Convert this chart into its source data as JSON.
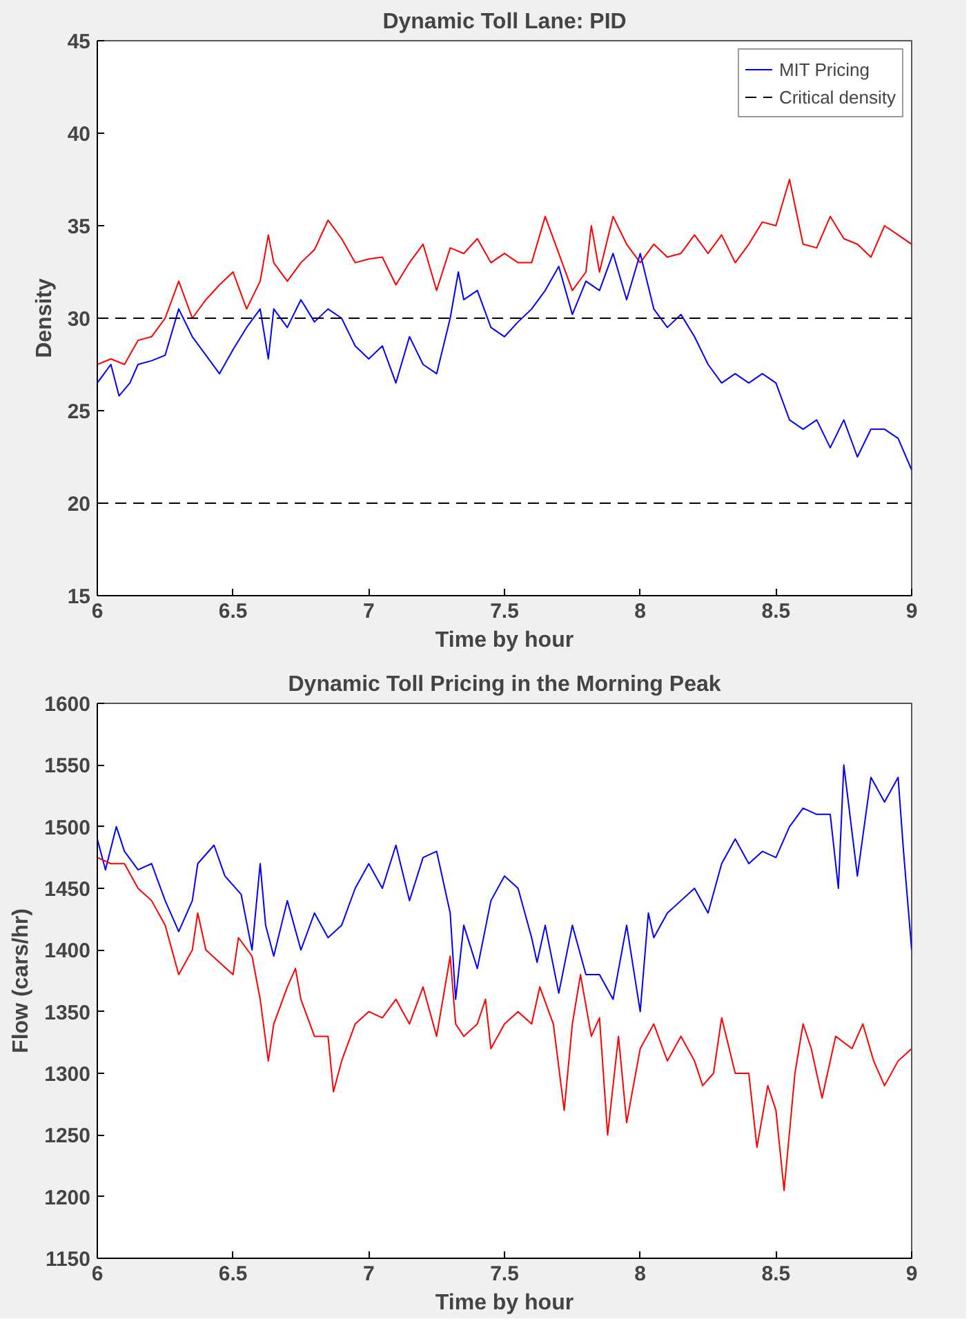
{
  "chart_data": [
    {
      "type": "line",
      "title": "Dynamic Toll Lane: PID",
      "xlabel": "Time by hour",
      "ylabel": "Density",
      "xlim": [
        6,
        9
      ],
      "xticks": [
        6,
        6.5,
        7,
        7.5,
        8,
        8.5,
        9
      ],
      "ylim": [
        15,
        45
      ],
      "yticks": [
        15,
        20,
        25,
        30,
        35,
        40,
        45
      ],
      "grid": false,
      "legend": "top right",
      "line_style": "solid",
      "series": [
        {
          "color": "#ff0000",
          "x": [
            6.0,
            6.05,
            6.1,
            6.15,
            6.2,
            6.25,
            6.3,
            6.35,
            6.4,
            6.45,
            6.5,
            6.55,
            6.6,
            6.63,
            6.65,
            6.7,
            6.75,
            6.8,
            6.85,
            6.9,
            6.95,
            7.0,
            7.05,
            7.1,
            7.15,
            7.2,
            7.25,
            7.3,
            7.35,
            7.4,
            7.45,
            7.5,
            7.55,
            7.6,
            7.65,
            7.7,
            7.75,
            7.8,
            7.82,
            7.85,
            7.9,
            7.95,
            8.0,
            8.05,
            8.1,
            8.15,
            8.2,
            8.25,
            8.3,
            8.35,
            8.4,
            8.45,
            8.5,
            8.55,
            8.6,
            8.65,
            8.7,
            8.75,
            8.8,
            8.85,
            8.9,
            8.95,
            9.0
          ],
          "values": [
            27.5,
            27.8,
            27.5,
            28.8,
            29.0,
            30.0,
            32.0,
            30.0,
            31.0,
            31.8,
            32.5,
            30.5,
            32.0,
            34.5,
            33.0,
            32.0,
            33.0,
            33.7,
            35.3,
            34.3,
            33.0,
            33.2,
            33.3,
            31.8,
            33.0,
            34.0,
            31.5,
            33.8,
            33.5,
            34.3,
            33.0,
            33.5,
            33.0,
            33.0,
            35.5,
            33.5,
            31.5,
            32.5,
            35.0,
            32.5,
            35.5,
            34.0,
            33.0,
            34.0,
            33.3,
            33.5,
            34.5,
            33.5,
            34.5,
            33.0,
            34.0,
            35.2,
            35.0,
            37.5,
            34.0,
            33.8,
            35.5,
            34.3,
            34.0,
            33.3,
            35.0,
            34.5,
            34.0
          ]
        },
        {
          "name": "MIT Pricing",
          "color": "#0000ff",
          "x": [
            6.0,
            6.05,
            6.08,
            6.12,
            6.15,
            6.2,
            6.25,
            6.3,
            6.35,
            6.4,
            6.45,
            6.5,
            6.55,
            6.6,
            6.63,
            6.65,
            6.7,
            6.75,
            6.8,
            6.85,
            6.9,
            6.95,
            7.0,
            7.05,
            7.1,
            7.15,
            7.2,
            7.25,
            7.3,
            7.33,
            7.35,
            7.4,
            7.45,
            7.5,
            7.55,
            7.6,
            7.65,
            7.7,
            7.75,
            7.8,
            7.85,
            7.9,
            7.95,
            8.0,
            8.05,
            8.1,
            8.15,
            8.2,
            8.25,
            8.3,
            8.35,
            8.4,
            8.45,
            8.5,
            8.55,
            8.6,
            8.65,
            8.7,
            8.75,
            8.8,
            8.85,
            8.9,
            8.95,
            9.0
          ],
          "values": [
            26.5,
            27.5,
            25.8,
            26.5,
            27.5,
            27.7,
            28.0,
            30.5,
            29.0,
            28.0,
            27.0,
            28.3,
            29.5,
            30.5,
            27.8,
            30.5,
            29.5,
            31.0,
            29.8,
            30.5,
            30.0,
            28.5,
            27.8,
            28.5,
            26.5,
            29.0,
            27.5,
            27.0,
            30.0,
            32.5,
            31.0,
            31.5,
            29.5,
            29.0,
            29.8,
            30.5,
            31.5,
            32.8,
            30.2,
            32.0,
            31.5,
            33.5,
            31.0,
            33.5,
            30.5,
            29.5,
            30.2,
            29.0,
            27.5,
            26.5,
            27.0,
            26.5,
            27.0,
            26.5,
            24.5,
            24.0,
            24.5,
            23.0,
            24.5,
            22.5,
            24.0,
            24.0,
            23.5,
            21.8
          ]
        }
      ],
      "ref_lines": [
        {
          "axis": "y",
          "value": 30,
          "label": "Critical density",
          "color": "#000000",
          "line_style": "dashed"
        },
        {
          "axis": "y",
          "value": 20,
          "color": "#000000",
          "line_style": "dashed"
        }
      ]
    },
    {
      "type": "line",
      "title": "Dynamic Toll Pricing in the Morning Peak",
      "xlabel": "Time by hour",
      "ylabel": "Flow (cars/hr)",
      "xlim": [
        6,
        9
      ],
      "xticks": [
        6,
        6.5,
        7,
        7.5,
        8,
        8.5,
        9
      ],
      "ylim": [
        1150,
        1600
      ],
      "yticks": [
        1150,
        1200,
        1250,
        1300,
        1350,
        1400,
        1450,
        1500,
        1550,
        1600
      ],
      "grid": false,
      "line_style": "solid",
      "series": [
        {
          "color": "#0000ff",
          "x": [
            6.0,
            6.03,
            6.07,
            6.1,
            6.15,
            6.2,
            6.25,
            6.3,
            6.35,
            6.37,
            6.43,
            6.47,
            6.53,
            6.57,
            6.6,
            6.62,
            6.65,
            6.7,
            6.75,
            6.8,
            6.85,
            6.9,
            6.95,
            7.0,
            7.05,
            7.1,
            7.15,
            7.2,
            7.25,
            7.3,
            7.32,
            7.35,
            7.4,
            7.45,
            7.5,
            7.55,
            7.6,
            7.62,
            7.65,
            7.7,
            7.75,
            7.8,
            7.85,
            7.9,
            7.95,
            8.0,
            8.03,
            8.05,
            8.1,
            8.15,
            8.2,
            8.25,
            8.3,
            8.35,
            8.4,
            8.45,
            8.5,
            8.55,
            8.6,
            8.65,
            8.7,
            8.73,
            8.75,
            8.8,
            8.85,
            8.9,
            8.95,
            8.97,
            9.0
          ],
          "values": [
            1490,
            1465,
            1500,
            1480,
            1465,
            1470,
            1440,
            1415,
            1440,
            1470,
            1485,
            1460,
            1445,
            1400,
            1470,
            1420,
            1395,
            1440,
            1400,
            1430,
            1410,
            1420,
            1450,
            1470,
            1450,
            1485,
            1440,
            1475,
            1480,
            1430,
            1360,
            1420,
            1385,
            1440,
            1460,
            1450,
            1410,
            1390,
            1420,
            1365,
            1420,
            1380,
            1380,
            1360,
            1420,
            1350,
            1430,
            1410,
            1430,
            1440,
            1450,
            1430,
            1470,
            1490,
            1470,
            1480,
            1475,
            1500,
            1515,
            1510,
            1510,
            1450,
            1550,
            1460,
            1540,
            1520,
            1540,
            1480,
            1400
          ]
        },
        {
          "color": "#ff0000",
          "x": [
            6.0,
            6.05,
            6.1,
            6.15,
            6.2,
            6.25,
            6.3,
            6.35,
            6.37,
            6.4,
            6.45,
            6.5,
            6.52,
            6.57,
            6.6,
            6.63,
            6.65,
            6.7,
            6.73,
            6.75,
            6.8,
            6.85,
            6.87,
            6.9,
            6.95,
            7.0,
            7.05,
            7.1,
            7.15,
            7.2,
            7.25,
            7.3,
            7.32,
            7.35,
            7.4,
            7.43,
            7.45,
            7.5,
            7.55,
            7.6,
            7.63,
            7.68,
            7.72,
            7.75,
            7.78,
            7.82,
            7.85,
            7.88,
            7.92,
            7.95,
            8.0,
            8.05,
            8.1,
            8.15,
            8.2,
            8.23,
            8.27,
            8.3,
            8.35,
            8.4,
            8.43,
            8.47,
            8.5,
            8.53,
            8.57,
            8.6,
            8.63,
            8.67,
            8.72,
            8.78,
            8.82,
            8.86,
            8.9,
            8.95,
            9.0
          ],
          "values": [
            1475,
            1470,
            1470,
            1450,
            1440,
            1420,
            1380,
            1400,
            1430,
            1400,
            1390,
            1380,
            1410,
            1395,
            1360,
            1310,
            1340,
            1370,
            1385,
            1360,
            1330,
            1330,
            1285,
            1310,
            1340,
            1350,
            1345,
            1360,
            1340,
            1370,
            1330,
            1395,
            1340,
            1330,
            1340,
            1360,
            1320,
            1340,
            1350,
            1340,
            1370,
            1340,
            1270,
            1340,
            1380,
            1330,
            1345,
            1250,
            1330,
            1260,
            1320,
            1340,
            1310,
            1330,
            1310,
            1290,
            1300,
            1345,
            1300,
            1300,
            1240,
            1290,
            1270,
            1205,
            1300,
            1340,
            1320,
            1280,
            1330,
            1320,
            1340,
            1310,
            1290,
            1310,
            1320
          ]
        }
      ]
    }
  ]
}
